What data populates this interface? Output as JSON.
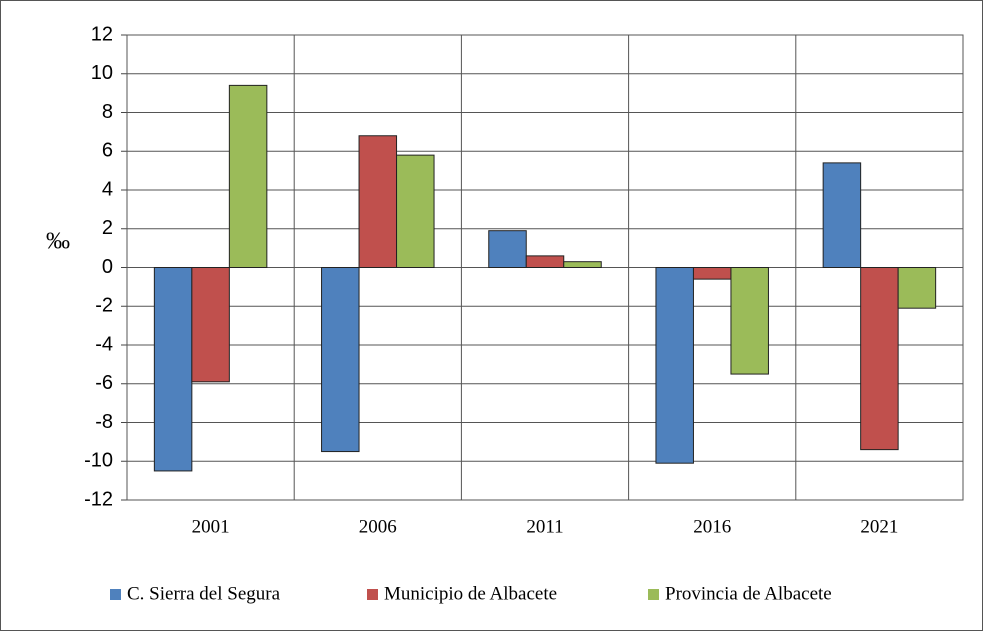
{
  "chart_data": {
    "type": "bar",
    "y_label": "‰",
    "categories": [
      "2001",
      "2006",
      "2011",
      "2016",
      "2021"
    ],
    "series": [
      {
        "name": "C. Sierra del Segura",
        "color": "#4f81bd",
        "values": [
          -10.5,
          -9.5,
          1.9,
          -10.1,
          5.4
        ]
      },
      {
        "name": "Municipio de Albacete",
        "color": "#c0504d",
        "values": [
          -5.9,
          6.8,
          0.6,
          -0.6,
          -9.4
        ]
      },
      {
        "name": "Provincia de Albacete",
        "color": "#9bbb59",
        "values": [
          9.4,
          5.8,
          0.3,
          -5.5,
          -2.1
        ]
      }
    ],
    "ylim": [
      -12,
      12
    ],
    "yticks": [
      -12,
      -10,
      -8,
      -6,
      -4,
      -2,
      0,
      2,
      4,
      6,
      8,
      10,
      12
    ],
    "grid": true,
    "legend": "bottom"
  }
}
